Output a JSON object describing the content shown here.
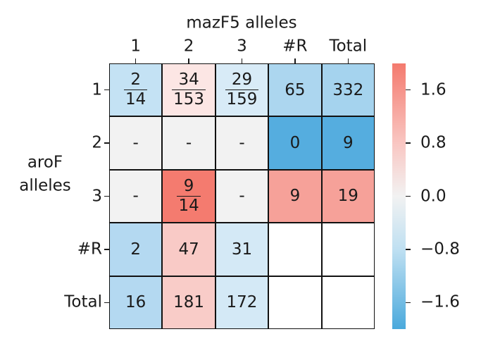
{
  "chart_data": {
    "type": "heatmap",
    "title": "mazF5 alleles",
    "ylabel": "aroF\nalleles",
    "columns": [
      "1",
      "2",
      "3",
      "#R",
      "Total"
    ],
    "rows": [
      "1",
      "2",
      "3",
      "#R",
      "Total"
    ],
    "cells": [
      [
        {
          "num": "2",
          "den": "14",
          "color": "#c4e2f4"
        },
        {
          "num": "34",
          "den": "153",
          "color": "#fce6e4"
        },
        {
          "num": "29",
          "den": "159",
          "color": "#d8ebf7"
        },
        {
          "text": "65",
          "color": "#acd6ef"
        },
        {
          "text": "332",
          "color": "#a5d3ee"
        }
      ],
      [
        {
          "text": "-",
          "color": "#f2f2f2"
        },
        {
          "text": "-",
          "color": "#f2f2f2"
        },
        {
          "text": "-",
          "color": "#f2f2f2"
        },
        {
          "text": "0",
          "color": "#55addf"
        },
        {
          "text": "9",
          "color": "#55addf"
        }
      ],
      [
        {
          "text": "-",
          "color": "#f2f2f2"
        },
        {
          "num": "9",
          "den": "14",
          "color": "#f47b6f"
        },
        {
          "text": "-",
          "color": "#f2f2f2"
        },
        {
          "text": "9",
          "color": "#f6a199"
        },
        {
          "text": "19",
          "color": "#f6a199"
        }
      ],
      [
        {
          "text": "2",
          "color": "#b4d9f1"
        },
        {
          "text": "47",
          "color": "#f9cac6"
        },
        {
          "text": "31",
          "color": "#d4e9f6"
        },
        {
          "text": "",
          "color": "#ffffff"
        },
        {
          "text": "",
          "color": "#ffffff"
        }
      ],
      [
        {
          "text": "16",
          "color": "#b4d9f1"
        },
        {
          "text": "181",
          "color": "#f9ccc8"
        },
        {
          "text": "172",
          "color": "#d4e9f6"
        },
        {
          "text": "",
          "color": "#ffffff"
        },
        {
          "text": "",
          "color": "#ffffff"
        }
      ]
    ],
    "colorbar": {
      "min": -2.0,
      "max": 2.0,
      "ticks": [
        1.6,
        0.8,
        0.0,
        -0.8,
        -1.6
      ],
      "tick_labels": [
        "1.6",
        "0.8",
        "0.0",
        "−0.8",
        "−1.6"
      ],
      "colors": {
        "high": "#f47a6e",
        "mid": "#f2f2f2",
        "low": "#4aa9dc"
      }
    }
  }
}
